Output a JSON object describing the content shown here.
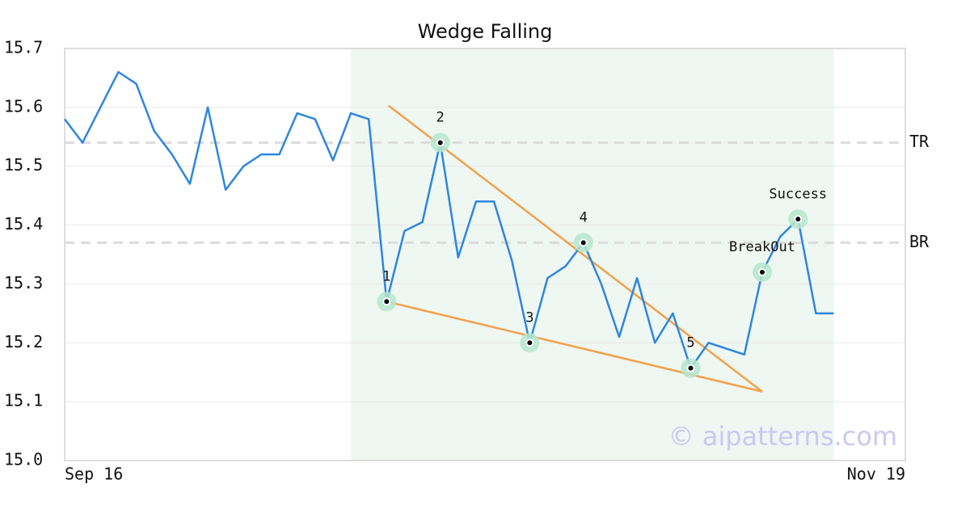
{
  "chart_data": {
    "type": "line",
    "title": "Wedge Falling",
    "x": [
      0,
      1,
      2,
      3,
      4,
      5,
      6,
      7,
      8,
      9,
      10,
      11,
      12,
      13,
      14,
      15,
      16,
      17,
      18,
      19,
      20,
      21,
      22,
      23,
      24,
      25,
      26,
      27,
      28,
      29,
      30,
      31,
      32,
      33,
      34,
      35,
      36,
      37,
      38,
      39,
      40,
      41,
      42,
      43
    ],
    "series": [
      {
        "color": "#2e86de",
        "values": [
          15.58,
          15.54,
          15.6,
          15.66,
          15.64,
          15.56,
          15.52,
          15.47,
          15.6,
          15.46,
          15.5,
          15.52,
          15.52,
          15.59,
          15.58,
          15.51,
          15.59,
          15.58,
          15.27,
          15.39,
          15.405,
          15.54,
          15.345,
          15.44,
          15.44,
          15.34,
          15.2,
          15.31,
          15.33,
          15.37,
          15.3,
          15.21,
          15.31,
          15.2,
          15.25,
          15.157,
          15.2,
          15.19,
          15.18,
          15.32,
          15.38,
          15.41,
          15.25,
          15.25
        ]
      }
    ],
    "xlim": [
      0,
      47
    ],
    "xticks": [
      {
        "value": 0,
        "label": "Sep 16"
      },
      {
        "value": 47,
        "label": "Nov 19"
      }
    ],
    "ylim": [
      15.0,
      15.7
    ],
    "yticks": [
      {
        "value": 15.0,
        "label": "15.0"
      },
      15.1,
      15.2,
      15.3,
      15.4,
      15.5,
      15.6,
      15.7
    ],
    "grid": true,
    "highlight_range": [
      16,
      43
    ],
    "highlight_color": "#eef7f2",
    "levels": [
      {
        "label": "TR",
        "value": 15.54
      },
      {
        "label": "BR",
        "value": 15.37
      }
    ],
    "trendlines": {
      "color": "#f5a04a",
      "lines": [
        {
          "x": [
            18.1,
            39
          ],
          "y": [
            15.603,
            15.117
          ]
        },
        {
          "x": [
            18,
            39
          ],
          "y": [
            15.27,
            15.117
          ]
        }
      ]
    },
    "pattern_points": [
      {
        "label": "1",
        "x": 18,
        "y": 15.27
      },
      {
        "label": "2",
        "x": 21,
        "y": 15.54
      },
      {
        "label": "3",
        "x": 26,
        "y": 15.2
      },
      {
        "label": "4",
        "x": 29,
        "y": 15.37
      },
      {
        "label": "5",
        "x": 35,
        "y": 15.157
      },
      {
        "label": "BreakOut",
        "x": 39,
        "y": 15.32
      },
      {
        "label": "Success",
        "x": 41,
        "y": 15.41
      }
    ],
    "watermark": "© aipatterns.com"
  }
}
